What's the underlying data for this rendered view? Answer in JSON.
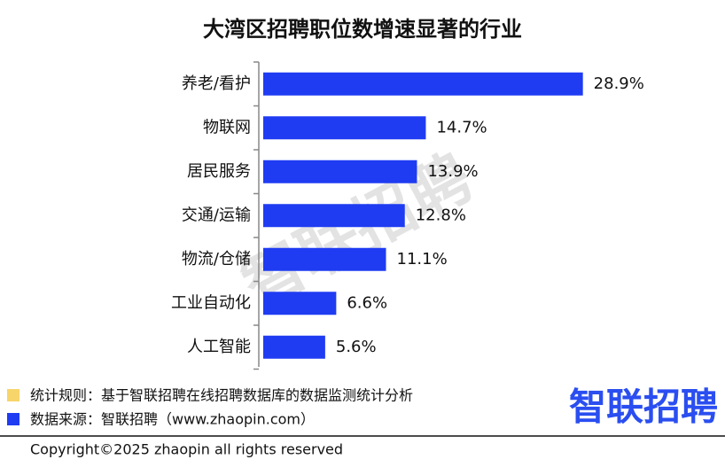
{
  "chart_data": {
    "type": "barh",
    "title": "大湾区招聘职位数增速显著的行业",
    "categories": [
      "养老/看护",
      "物联网",
      "居民服务",
      "交通/运输",
      "物流/仓储",
      "工业自动化",
      "人工智能"
    ],
    "values": [
      28.9,
      14.7,
      13.9,
      12.8,
      11.1,
      6.6,
      5.6
    ],
    "value_labels": [
      "28.9%",
      "14.7%",
      "13.9%",
      "12.8%",
      "11.1%",
      "6.6%",
      "5.6%"
    ],
    "color": "#1f3cf2"
  },
  "notes": [
    "统计规则：基于智联招聘在线招聘数据库的数据监测统计分析",
    "数据来源：智联招聘（www.zhaopin.com）"
  ],
  "logo": "智联招聘",
  "watermark": "智联招聘",
  "copyright": "Copyright©2025 zhaopin all rights reserved"
}
